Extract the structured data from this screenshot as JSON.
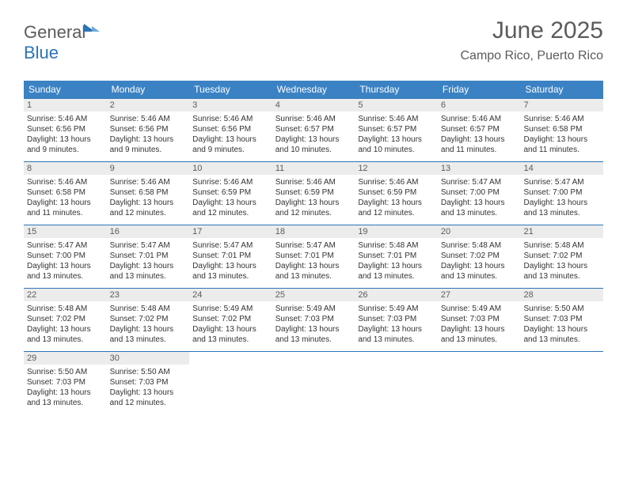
{
  "brand": {
    "part1": "General",
    "part2": "Blue"
  },
  "header": {
    "title": "June 2025",
    "location": "Campo Rico, Puerto Rico"
  },
  "style": {
    "header_bg": "#3b82c4",
    "header_text": "#ffffff",
    "daynum_bg": "#ececec",
    "rule_color": "#2d74b6",
    "body_text": "#333333",
    "title_color": "#5b5b5b",
    "title_fontsize": 30,
    "location_fontsize": 16,
    "dow_fontsize": 12,
    "daynum_fontsize": 11,
    "cell_fontsize": 10
  },
  "dows": [
    "Sunday",
    "Monday",
    "Tuesday",
    "Wednesday",
    "Thursday",
    "Friday",
    "Saturday"
  ],
  "weeks": [
    [
      {
        "n": "1",
        "sr": "5:46 AM",
        "ss": "6:56 PM",
        "dl": "13 hours and 9 minutes."
      },
      {
        "n": "2",
        "sr": "5:46 AM",
        "ss": "6:56 PM",
        "dl": "13 hours and 9 minutes."
      },
      {
        "n": "3",
        "sr": "5:46 AM",
        "ss": "6:56 PM",
        "dl": "13 hours and 9 minutes."
      },
      {
        "n": "4",
        "sr": "5:46 AM",
        "ss": "6:57 PM",
        "dl": "13 hours and 10 minutes."
      },
      {
        "n": "5",
        "sr": "5:46 AM",
        "ss": "6:57 PM",
        "dl": "13 hours and 10 minutes."
      },
      {
        "n": "6",
        "sr": "5:46 AM",
        "ss": "6:57 PM",
        "dl": "13 hours and 11 minutes."
      },
      {
        "n": "7",
        "sr": "5:46 AM",
        "ss": "6:58 PM",
        "dl": "13 hours and 11 minutes."
      }
    ],
    [
      {
        "n": "8",
        "sr": "5:46 AM",
        "ss": "6:58 PM",
        "dl": "13 hours and 11 minutes."
      },
      {
        "n": "9",
        "sr": "5:46 AM",
        "ss": "6:58 PM",
        "dl": "13 hours and 12 minutes."
      },
      {
        "n": "10",
        "sr": "5:46 AM",
        "ss": "6:59 PM",
        "dl": "13 hours and 12 minutes."
      },
      {
        "n": "11",
        "sr": "5:46 AM",
        "ss": "6:59 PM",
        "dl": "13 hours and 12 minutes."
      },
      {
        "n": "12",
        "sr": "5:46 AM",
        "ss": "6:59 PM",
        "dl": "13 hours and 12 minutes."
      },
      {
        "n": "13",
        "sr": "5:47 AM",
        "ss": "7:00 PM",
        "dl": "13 hours and 13 minutes."
      },
      {
        "n": "14",
        "sr": "5:47 AM",
        "ss": "7:00 PM",
        "dl": "13 hours and 13 minutes."
      }
    ],
    [
      {
        "n": "15",
        "sr": "5:47 AM",
        "ss": "7:00 PM",
        "dl": "13 hours and 13 minutes."
      },
      {
        "n": "16",
        "sr": "5:47 AM",
        "ss": "7:01 PM",
        "dl": "13 hours and 13 minutes."
      },
      {
        "n": "17",
        "sr": "5:47 AM",
        "ss": "7:01 PM",
        "dl": "13 hours and 13 minutes."
      },
      {
        "n": "18",
        "sr": "5:47 AM",
        "ss": "7:01 PM",
        "dl": "13 hours and 13 minutes."
      },
      {
        "n": "19",
        "sr": "5:48 AM",
        "ss": "7:01 PM",
        "dl": "13 hours and 13 minutes."
      },
      {
        "n": "20",
        "sr": "5:48 AM",
        "ss": "7:02 PM",
        "dl": "13 hours and 13 minutes."
      },
      {
        "n": "21",
        "sr": "5:48 AM",
        "ss": "7:02 PM",
        "dl": "13 hours and 13 minutes."
      }
    ],
    [
      {
        "n": "22",
        "sr": "5:48 AM",
        "ss": "7:02 PM",
        "dl": "13 hours and 13 minutes."
      },
      {
        "n": "23",
        "sr": "5:48 AM",
        "ss": "7:02 PM",
        "dl": "13 hours and 13 minutes."
      },
      {
        "n": "24",
        "sr": "5:49 AM",
        "ss": "7:02 PM",
        "dl": "13 hours and 13 minutes."
      },
      {
        "n": "25",
        "sr": "5:49 AM",
        "ss": "7:03 PM",
        "dl": "13 hours and 13 minutes."
      },
      {
        "n": "26",
        "sr": "5:49 AM",
        "ss": "7:03 PM",
        "dl": "13 hours and 13 minutes."
      },
      {
        "n": "27",
        "sr": "5:49 AM",
        "ss": "7:03 PM",
        "dl": "13 hours and 13 minutes."
      },
      {
        "n": "28",
        "sr": "5:50 AM",
        "ss": "7:03 PM",
        "dl": "13 hours and 13 minutes."
      }
    ],
    [
      {
        "n": "29",
        "sr": "5:50 AM",
        "ss": "7:03 PM",
        "dl": "13 hours and 13 minutes."
      },
      {
        "n": "30",
        "sr": "5:50 AM",
        "ss": "7:03 PM",
        "dl": "13 hours and 12 minutes."
      },
      null,
      null,
      null,
      null,
      null
    ]
  ],
  "labels": {
    "sunrise": "Sunrise:",
    "sunset": "Sunset:",
    "daylight": "Daylight:"
  }
}
